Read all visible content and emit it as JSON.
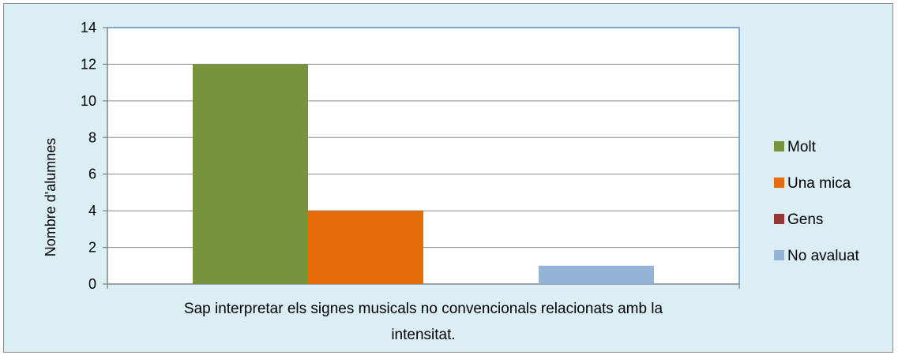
{
  "chart_data": {
    "type": "bar",
    "title": "",
    "xlabel": "",
    "ylabel": "Nombre d'alumnes",
    "ylim": [
      0,
      14
    ],
    "y_ticks": [
      0,
      2,
      4,
      6,
      8,
      10,
      12,
      14
    ],
    "grid": true,
    "legend_position": "right",
    "categories": [
      "Sap interpretar els signes musicals no convencionals relacionats amb la intensitat."
    ],
    "category_label_lines": [
      "Sap interpretar els signes musicals no convencionals relacionats amb la",
      "intensitat."
    ],
    "series": [
      {
        "name": "Molt",
        "values": [
          12
        ],
        "color": "#77933c"
      },
      {
        "name": "Una mica",
        "values": [
          4
        ],
        "color": "#e46c0a"
      },
      {
        "name": "Gens",
        "values": [
          0
        ],
        "color": "#953735"
      },
      {
        "name": "No avaluat",
        "values": [
          1
        ],
        "color": "#95b3d7"
      }
    ],
    "colors": {
      "background": "#dbeef4",
      "plot_area": "#ffffff",
      "plot_border": "#4a7ebb",
      "grid": "#868686"
    }
  }
}
